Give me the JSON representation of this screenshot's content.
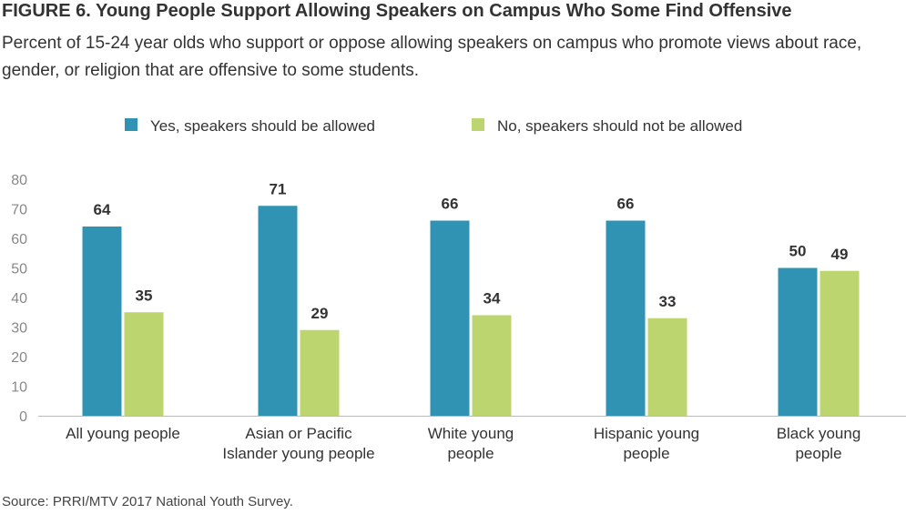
{
  "title": "FIGURE 6. Young People Support Allowing Speakers on Campus Who Some Find Offensive",
  "subtitle": "Percent of 15-24 year olds who support or oppose allowing speakers on campus who promote views about race, gender, or religion that are offensive to some students.",
  "source": "Source: PRRI/MTV 2017 National Youth Survey.",
  "chart_data": {
    "type": "bar",
    "categories": [
      [
        "All young people"
      ],
      [
        "Asian or Pacific",
        "Islander young people"
      ],
      [
        "White young",
        "people"
      ],
      [
        "Hispanic young",
        "people"
      ],
      [
        "Black young",
        "people"
      ]
    ],
    "series": [
      {
        "name": "Yes, speakers should be allowed",
        "color": "#3193b3",
        "values": [
          64,
          71,
          66,
          66,
          50
        ]
      },
      {
        "name": "No, speakers should not be allowed",
        "color": "#bcd56f",
        "values": [
          35,
          29,
          34,
          33,
          49
        ]
      }
    ],
    "ylim": [
      0,
      80
    ],
    "yticks": [
      0,
      10,
      20,
      30,
      40,
      50,
      60,
      70,
      80
    ],
    "grid": false,
    "legend_position": "top-center",
    "data_labels": true
  }
}
